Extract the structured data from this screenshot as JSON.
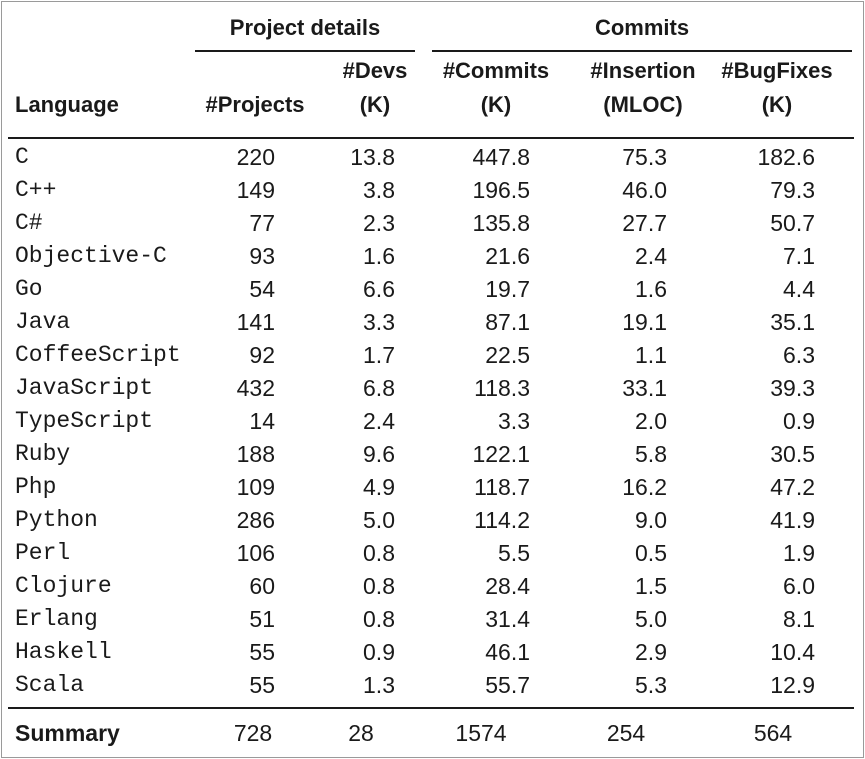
{
  "table": {
    "groups": [
      "Project details",
      "Commits"
    ],
    "columns": [
      [
        "Language"
      ],
      [
        "#Projects"
      ],
      [
        "#Devs",
        "(K)"
      ],
      [
        "#Commits",
        "(K)"
      ],
      [
        "#Insertion",
        "(MLOC)"
      ],
      [
        "#BugFixes",
        "(K)"
      ]
    ],
    "rows": [
      [
        "C",
        "220",
        "13.8",
        "447.8",
        "75.3",
        "182.6"
      ],
      [
        "C++",
        "149",
        "3.8",
        "196.5",
        "46.0",
        "79.3"
      ],
      [
        "C#",
        "77",
        "2.3",
        "135.8",
        "27.7",
        "50.7"
      ],
      [
        "Objective-C",
        "93",
        "1.6",
        "21.6",
        "2.4",
        "7.1"
      ],
      [
        "Go",
        "54",
        "6.6",
        "19.7",
        "1.6",
        "4.4"
      ],
      [
        "Java",
        "141",
        "3.3",
        "87.1",
        "19.1",
        "35.1"
      ],
      [
        "CoffeeScript",
        "92",
        "1.7",
        "22.5",
        "1.1",
        "6.3"
      ],
      [
        "JavaScript",
        "432",
        "6.8",
        "118.3",
        "33.1",
        "39.3"
      ],
      [
        "TypeScript",
        "14",
        "2.4",
        "3.3",
        "2.0",
        "0.9"
      ],
      [
        "Ruby",
        "188",
        "9.6",
        "122.1",
        "5.8",
        "30.5"
      ],
      [
        "Php",
        "109",
        "4.9",
        "118.7",
        "16.2",
        "47.2"
      ],
      [
        "Python",
        "286",
        "5.0",
        "114.2",
        "9.0",
        "41.9"
      ],
      [
        "Perl",
        "106",
        "0.8",
        "5.5",
        "0.5",
        "1.9"
      ],
      [
        "Clojure",
        "60",
        "0.8",
        "28.4",
        "1.5",
        "6.0"
      ],
      [
        "Erlang",
        "51",
        "0.8",
        "31.4",
        "5.0",
        "8.1"
      ],
      [
        "Haskell",
        "55",
        "0.9",
        "46.1",
        "2.9",
        "10.4"
      ],
      [
        "Scala",
        "55",
        "1.3",
        "55.7",
        "5.3",
        "12.9"
      ]
    ],
    "summary": [
      "Summary",
      "728",
      "28",
      "1574",
      "254",
      "564"
    ]
  }
}
